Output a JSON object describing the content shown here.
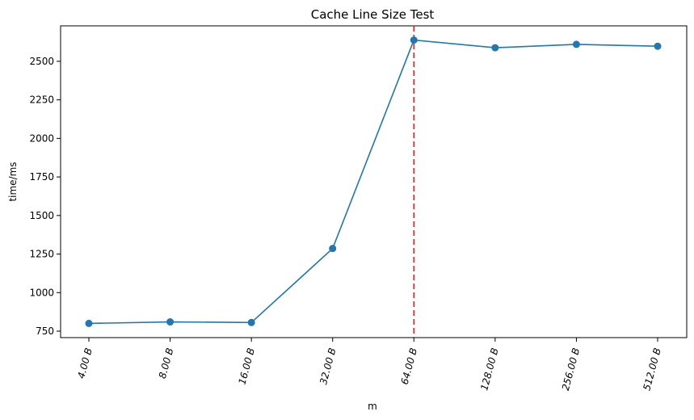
{
  "chart_data": {
    "type": "line",
    "title": "Cache Line Size Test",
    "xlabel": "m",
    "ylabel": "time/ms",
    "categories": [
      "4.00 B",
      "8.00 B",
      "16.00 B",
      "32.00 B",
      "64.00 B",
      "128.00 B",
      "256.00 B",
      "512.00 B"
    ],
    "series": [
      {
        "values": [
          800,
          810,
          806,
          1286,
          2638,
          2588,
          2610,
          2598
        ],
        "color": "#1f77b4",
        "marker": "circle"
      }
    ],
    "yticks": [
      750,
      1000,
      1250,
      1500,
      1750,
      2000,
      2250,
      2500
    ],
    "ylim": [
      708,
      2730
    ],
    "annotations": [
      {
        "type": "vertical-line",
        "x": "64.00 B",
        "color": "#d62728",
        "style": "dashed"
      }
    ],
    "grid": false,
    "legend": "none"
  }
}
